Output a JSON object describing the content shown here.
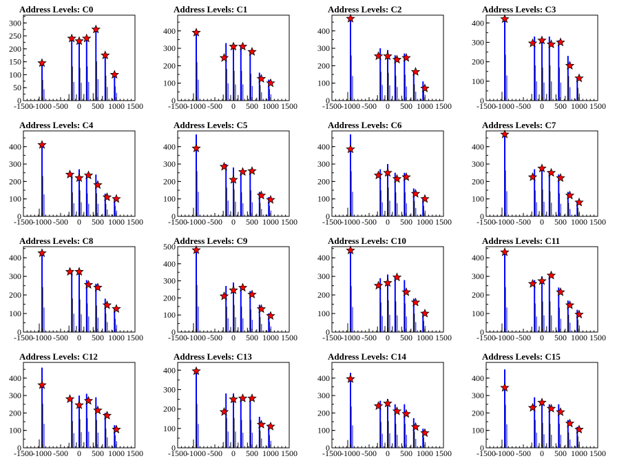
{
  "figure": {
    "colors": {
      "histogram": "#0000ff",
      "outline": "#000000",
      "marker": "#ff0000"
    }
  },
  "chart_data": [
    {
      "type": "bar",
      "title": "Address Levels: C0",
      "xlim": [
        -1500,
        1500
      ],
      "ylim": [
        0,
        330
      ],
      "yticks": [
        0,
        50,
        100,
        150,
        200,
        250,
        300
      ],
      "peaks": {
        "x": [
          -1000,
          -200,
          0,
          200,
          450,
          700,
          950
        ],
        "y": [
          145,
          240,
          230,
          240,
          275,
          175,
          100
        ]
      },
      "markers": {
        "x": [
          -1000,
          -200,
          0,
          200,
          450,
          700,
          950
        ],
        "y": [
          145,
          240,
          230,
          240,
          275,
          175,
          100
        ]
      }
    },
    {
      "type": "bar",
      "title": "Address Levels: C1",
      "xlim": [
        -1500,
        1500
      ],
      "ylim": [
        0,
        490
      ],
      "yticks": [
        0,
        100,
        200,
        300,
        400
      ],
      "peaks": {
        "x": [
          -1000,
          -200,
          0,
          200,
          450,
          700,
          950
        ],
        "y": [
          400,
          330,
          310,
          310,
          280,
          160,
          120
        ]
      },
      "markers": {
        "x": [
          -1000,
          -250,
          0,
          250,
          500,
          750,
          1000
        ],
        "y": [
          390,
          245,
          310,
          310,
          280,
          125,
          100
        ]
      }
    },
    {
      "type": "bar",
      "title": "Address Levels: C2",
      "xlim": [
        -1500,
        1500
      ],
      "ylim": [
        0,
        490
      ],
      "yticks": [
        0,
        100,
        200,
        300,
        400
      ],
      "peaks": {
        "x": [
          -1000,
          -200,
          0,
          200,
          450,
          700,
          950
        ],
        "y": [
          470,
          300,
          290,
          260,
          270,
          170,
          110
        ]
      },
      "markers": {
        "x": [
          -1000,
          -250,
          0,
          250,
          500,
          750,
          1000
        ],
        "y": [
          470,
          255,
          255,
          235,
          245,
          165,
          70
        ]
      }
    },
    {
      "type": "bar",
      "title": "Address Levels: C3",
      "xlim": [
        -1500,
        1500
      ],
      "ylim": [
        0,
        440
      ],
      "yticks": [
        0,
        100,
        200,
        300,
        400
      ],
      "peaks": {
        "x": [
          -1000,
          -200,
          0,
          200,
          450,
          700,
          950
        ],
        "y": [
          430,
          330,
          310,
          330,
          310,
          230,
          120
        ]
      },
      "markers": {
        "x": [
          -1000,
          -250,
          0,
          250,
          500,
          750,
          1000
        ],
        "y": [
          420,
          295,
          310,
          290,
          300,
          180,
          115
        ]
      }
    },
    {
      "type": "bar",
      "title": "Address Levels: C4",
      "xlim": [
        -1500,
        1500
      ],
      "ylim": [
        0,
        490
      ],
      "yticks": [
        0,
        100,
        200,
        300,
        400
      ],
      "peaks": {
        "x": [
          -1000,
          -200,
          0,
          200,
          450,
          700,
          950
        ],
        "y": [
          420,
          250,
          270,
          240,
          240,
          130,
          110
        ]
      },
      "markers": {
        "x": [
          -1000,
          -250,
          0,
          250,
          500,
          750,
          1000
        ],
        "y": [
          410,
          240,
          220,
          235,
          180,
          110,
          100
        ]
      }
    },
    {
      "type": "bar",
      "title": "Address Levels: C5",
      "xlim": [
        -1500,
        1500
      ],
      "ylim": [
        0,
        490
      ],
      "yticks": [
        0,
        100,
        200,
        300,
        400
      ],
      "peaks": {
        "x": [
          -1000,
          -200,
          0,
          200,
          450,
          700,
          950
        ],
        "y": [
          470,
          300,
          280,
          250,
          270,
          140,
          110
        ]
      },
      "markers": {
        "x": [
          -1000,
          -250,
          0,
          250,
          500,
          750,
          1000
        ],
        "y": [
          390,
          285,
          210,
          255,
          260,
          120,
          95
        ]
      }
    },
    {
      "type": "bar",
      "title": "Address Levels: C6",
      "xlim": [
        -1500,
        1500
      ],
      "ylim": [
        0,
        490
      ],
      "yticks": [
        0,
        100,
        200,
        300,
        400
      ],
      "peaks": {
        "x": [
          -1000,
          -200,
          0,
          200,
          450,
          700,
          950
        ],
        "y": [
          470,
          270,
          300,
          250,
          250,
          160,
          110
        ]
      },
      "markers": {
        "x": [
          -1000,
          -250,
          0,
          250,
          500,
          750,
          1000
        ],
        "y": [
          385,
          235,
          250,
          215,
          225,
          130,
          100
        ]
      }
    },
    {
      "type": "bar",
      "title": "Address Levels: C7",
      "xlim": [
        -1500,
        1500
      ],
      "ylim": [
        0,
        490
      ],
      "yticks": [
        0,
        100,
        200,
        300,
        400
      ],
      "peaks": {
        "x": [
          -1000,
          -200,
          0,
          200,
          450,
          700,
          950
        ],
        "y": [
          480,
          270,
          280,
          260,
          240,
          140,
          90
        ]
      },
      "markers": {
        "x": [
          -1000,
          -250,
          0,
          250,
          500,
          750,
          1000
        ],
        "y": [
          470,
          225,
          275,
          250,
          220,
          120,
          80
        ]
      }
    },
    {
      "type": "bar",
      "title": "Address Levels: C8",
      "xlim": [
        -1500,
        1500
      ],
      "ylim": [
        0,
        460
      ],
      "yticks": [
        0,
        100,
        200,
        300,
        400
      ],
      "peaks": {
        "x": [
          -1000,
          -200,
          0,
          200,
          450,
          700,
          950
        ],
        "y": [
          440,
          330,
          320,
          280,
          260,
          180,
          130
        ]
      },
      "markers": {
        "x": [
          -1000,
          -250,
          0,
          250,
          500,
          750,
          1000
        ],
        "y": [
          425,
          325,
          325,
          255,
          240,
          145,
          125
        ]
      }
    },
    {
      "type": "bar",
      "title": "Address Levels: C9",
      "xlim": [
        -1500,
        1500
      ],
      "ylim": [
        0,
        500
      ],
      "yticks": [
        0,
        100,
        200,
        300,
        400,
        500
      ],
      "peaks": {
        "x": [
          -1000,
          -200,
          0,
          200,
          450,
          700,
          950
        ],
        "y": [
          500,
          270,
          290,
          270,
          240,
          160,
          110
        ]
      },
      "markers": {
        "x": [
          -1000,
          -250,
          0,
          250,
          500,
          750,
          1000
        ],
        "y": [
          480,
          210,
          245,
          260,
          220,
          135,
          95
        ]
      }
    },
    {
      "type": "bar",
      "title": "Address Levels: C10",
      "xlim": [
        -1500,
        1500
      ],
      "ylim": [
        0,
        460
      ],
      "yticks": [
        0,
        100,
        200,
        300,
        400
      ],
      "peaks": {
        "x": [
          -1000,
          -200,
          0,
          200,
          450,
          700,
          950
        ],
        "y": [
          450,
          290,
          310,
          300,
          280,
          180,
          110
        ]
      },
      "markers": {
        "x": [
          -1000,
          -250,
          0,
          250,
          500,
          750,
          1000
        ],
        "y": [
          440,
          250,
          265,
          295,
          215,
          160,
          100
        ]
      }
    },
    {
      "type": "bar",
      "title": "Address Levels: C11",
      "xlim": [
        -1500,
        1500
      ],
      "ylim": [
        0,
        460
      ],
      "yticks": [
        0,
        100,
        200,
        300,
        400
      ],
      "peaks": {
        "x": [
          -1000,
          -200,
          0,
          200,
          450,
          700,
          950
        ],
        "y": [
          440,
          280,
          300,
          300,
          240,
          170,
          120
        ]
      },
      "markers": {
        "x": [
          -1000,
          -250,
          0,
          250,
          500,
          750,
          1000
        ],
        "y": [
          430,
          260,
          275,
          305,
          215,
          145,
          95
        ]
      }
    },
    {
      "type": "bar",
      "title": "Address Levels: C12",
      "xlim": [
        -1500,
        1500
      ],
      "ylim": [
        0,
        490
      ],
      "yticks": [
        0,
        100,
        200,
        300,
        400
      ],
      "peaks": {
        "x": [
          -1000,
          -200,
          0,
          200,
          450,
          700,
          950
        ],
        "y": [
          460,
          280,
          300,
          310,
          290,
          200,
          130
        ]
      },
      "markers": {
        "x": [
          -1000,
          -250,
          0,
          250,
          500,
          750,
          1000
        ],
        "y": [
          360,
          280,
          245,
          270,
          215,
          185,
          105
        ]
      }
    },
    {
      "type": "bar",
      "title": "Address Levels: C13",
      "xlim": [
        -1500,
        1500
      ],
      "ylim": [
        0,
        440
      ],
      "yticks": [
        0,
        100,
        200,
        300,
        400
      ],
      "peaks": {
        "x": [
          -1000,
          -200,
          0,
          200,
          450,
          700,
          950
        ],
        "y": [
          410,
          280,
          280,
          260,
          260,
          160,
          120
        ]
      },
      "markers": {
        "x": [
          -1000,
          -250,
          0,
          250,
          500,
          750,
          1000
        ],
        "y": [
          395,
          185,
          250,
          255,
          255,
          120,
          110
        ]
      }
    },
    {
      "type": "bar",
      "title": "Address Levels: C14",
      "xlim": [
        -1500,
        1500
      ],
      "ylim": [
        0,
        490
      ],
      "yticks": [
        0,
        100,
        200,
        300,
        400
      ],
      "peaks": {
        "x": [
          -1000,
          -200,
          0,
          200,
          450,
          700,
          950
        ],
        "y": [
          430,
          270,
          280,
          250,
          250,
          170,
          110
        ]
      },
      "markers": {
        "x": [
          -1000,
          -250,
          0,
          250,
          500,
          750,
          1000
        ],
        "y": [
          395,
          240,
          255,
          210,
          195,
          120,
          85
        ]
      }
    },
    {
      "type": "bar",
      "title": "Address Levels: C15",
      "xlim": [
        -1500,
        1500
      ],
      "ylim": [
        0,
        490
      ],
      "yticks": [
        0,
        100,
        200,
        300,
        400
      ],
      "peaks": {
        "x": [
          -1000,
          -200,
          0,
          200,
          450,
          700,
          950
        ],
        "y": [
          450,
          290,
          260,
          250,
          250,
          160,
          120
        ]
      },
      "markers": {
        "x": [
          -1000,
          -250,
          0,
          250,
          500,
          750,
          1000
        ],
        "y": [
          345,
          230,
          260,
          225,
          205,
          140,
          105
        ]
      }
    }
  ]
}
